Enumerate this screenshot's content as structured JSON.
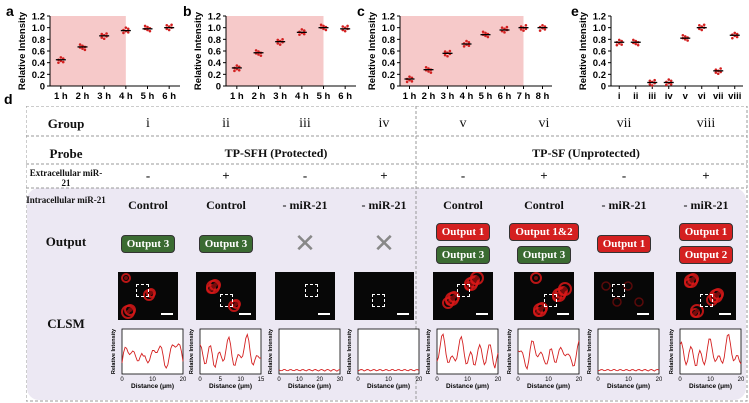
{
  "panel_labels": {
    "a": "a",
    "b": "b",
    "c": "c",
    "d": "d",
    "e": "e"
  },
  "colors": {
    "shade": "#f6c9c9",
    "point": "#d32020",
    "mean": "#000000",
    "output_green": "#3b6b32",
    "output_red": "#d42020",
    "dashed": "#999999"
  },
  "chart_data": [
    {
      "type": "scatter",
      "panel": "a",
      "ylabel": "Relative Intensity",
      "ylim": [
        0,
        1.2
      ],
      "yticks": [
        "0",
        "0.2",
        "0.4",
        "0.6",
        "0.8",
        "1.0",
        "1.2"
      ],
      "categories": [
        "1 h",
        "2 h",
        "3 h",
        "4 h",
        "5 h",
        "6 h"
      ],
      "means": [
        0.45,
        0.67,
        0.86,
        0.95,
        0.98,
        1.0
      ],
      "shaded_through": "4 h"
    },
    {
      "type": "scatter",
      "panel": "b",
      "ylabel": "Relative Intensity",
      "ylim": [
        0,
        1.2
      ],
      "yticks": [
        "0",
        "0.2",
        "0.4",
        "0.6",
        "0.8",
        "1.0",
        "1.2"
      ],
      "categories": [
        "1 h",
        "2 h",
        "3 h",
        "4 h",
        "5 h",
        "6 h"
      ],
      "means": [
        0.31,
        0.57,
        0.76,
        0.92,
        1.0,
        0.98
      ],
      "shaded_through": "5 h"
    },
    {
      "type": "scatter",
      "panel": "c",
      "ylabel": "Relative Intensity",
      "ylim": [
        0,
        1.2
      ],
      "yticks": [
        "0",
        "0.2",
        "0.4",
        "0.6",
        "0.8",
        "1.0",
        "1.2"
      ],
      "categories": [
        "1 h",
        "2 h",
        "3 h",
        "4 h",
        "5 h",
        "6 h",
        "7 h",
        "8 h"
      ],
      "means": [
        0.12,
        0.28,
        0.56,
        0.72,
        0.88,
        0.96,
        1.0,
        1.0
      ],
      "shaded_through": "7 h"
    },
    {
      "type": "scatter",
      "panel": "e",
      "ylabel": "Relative Intensity",
      "ylim": [
        0,
        1.2
      ],
      "yticks": [
        "0",
        "0.2",
        "0.4",
        "0.6",
        "0.8",
        "1.0",
        "1.2"
      ],
      "categories": [
        "i",
        "ii",
        "iii",
        "iv",
        "v",
        "vi",
        "vii",
        "viii"
      ],
      "means": [
        0.75,
        0.75,
        0.06,
        0.06,
        0.82,
        1.0,
        0.26,
        0.87
      ]
    }
  ],
  "table": {
    "row_headers": {
      "group": "Group",
      "probe": "Probe",
      "extracellular": "Extracellular miR-21",
      "intracellular": "Intracellular miR-21",
      "output": "Output",
      "clsm": "CLSM"
    },
    "groups": [
      "i",
      "ii",
      "iii",
      "iv",
      "v",
      "vi",
      "vii",
      "viii"
    ],
    "probes": {
      "left": "TP-SFH (Protected)",
      "right": "TP-SF (Unprotected)"
    },
    "extracellular": [
      "-",
      "+",
      "-",
      "+",
      "-",
      "+",
      "-",
      "+"
    ],
    "intracellular": [
      "Control",
      "Control",
      "- miR-21",
      "- miR-21",
      "Control",
      "Control",
      "- miR-21",
      "- miR-21"
    ],
    "outputs": [
      [
        {
          "label": "Output 3",
          "color": "green"
        }
      ],
      [
        {
          "label": "Output 3",
          "color": "green"
        }
      ],
      [],
      [],
      [
        {
          "label": "Output 1",
          "color": "red"
        },
        {
          "label": "Output 3",
          "color": "green"
        }
      ],
      [
        {
          "label": "Output 1&2",
          "color": "red"
        },
        {
          "label": "Output 3",
          "color": "green"
        }
      ],
      [
        {
          "label": "Output 1",
          "color": "red"
        }
      ],
      [
        {
          "label": "Output 1",
          "color": "red"
        },
        {
          "label": "Output 2",
          "color": "red"
        }
      ]
    ],
    "profile_ylabel": "Relative Intensity",
    "profile_xlabel": "Distance (μm)",
    "profile_xticks": [
      [
        "0",
        "10",
        "20"
      ],
      [
        "0",
        "5",
        "10",
        "15"
      ],
      [
        "0",
        "10",
        "20",
        "30"
      ],
      [
        "0",
        "10",
        "20"
      ],
      [
        "0",
        "10",
        "20"
      ],
      [
        "0",
        "10",
        "20"
      ],
      [
        "0",
        "10",
        "20"
      ],
      [
        "0",
        "10",
        "20"
      ]
    ]
  }
}
